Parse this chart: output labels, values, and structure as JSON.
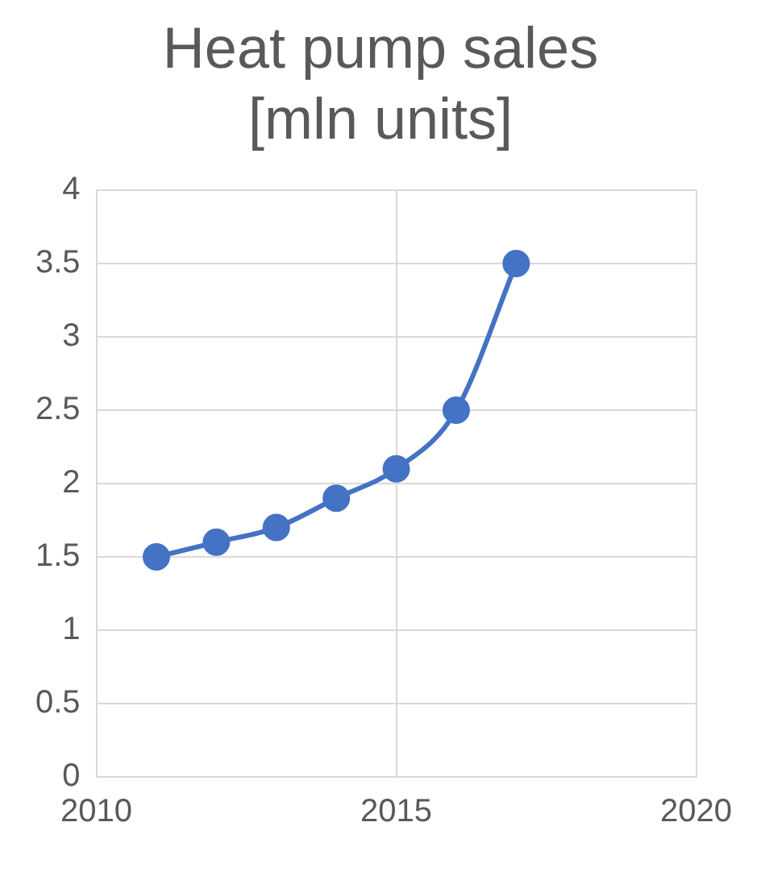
{
  "chart_data": {
    "type": "line",
    "title": "Heat pump sales [mln units]",
    "x": [
      2011,
      2012,
      2013,
      2014,
      2015,
      2016,
      2017
    ],
    "series": [
      {
        "color": "#4472c4",
        "values": [
          1.5,
          1.6,
          1.7,
          1.9,
          2.1,
          2.5,
          3.5
        ]
      }
    ],
    "xlim": [
      2010,
      2020
    ],
    "xticks": [
      2010,
      2015,
      2020
    ],
    "ylim": [
      0,
      4
    ],
    "yticks": [
      0,
      0.5,
      1,
      1.5,
      2,
      2.5,
      3,
      3.5,
      4
    ],
    "grid": true,
    "legend": false,
    "marker": "circle",
    "line_style": "solid"
  }
}
